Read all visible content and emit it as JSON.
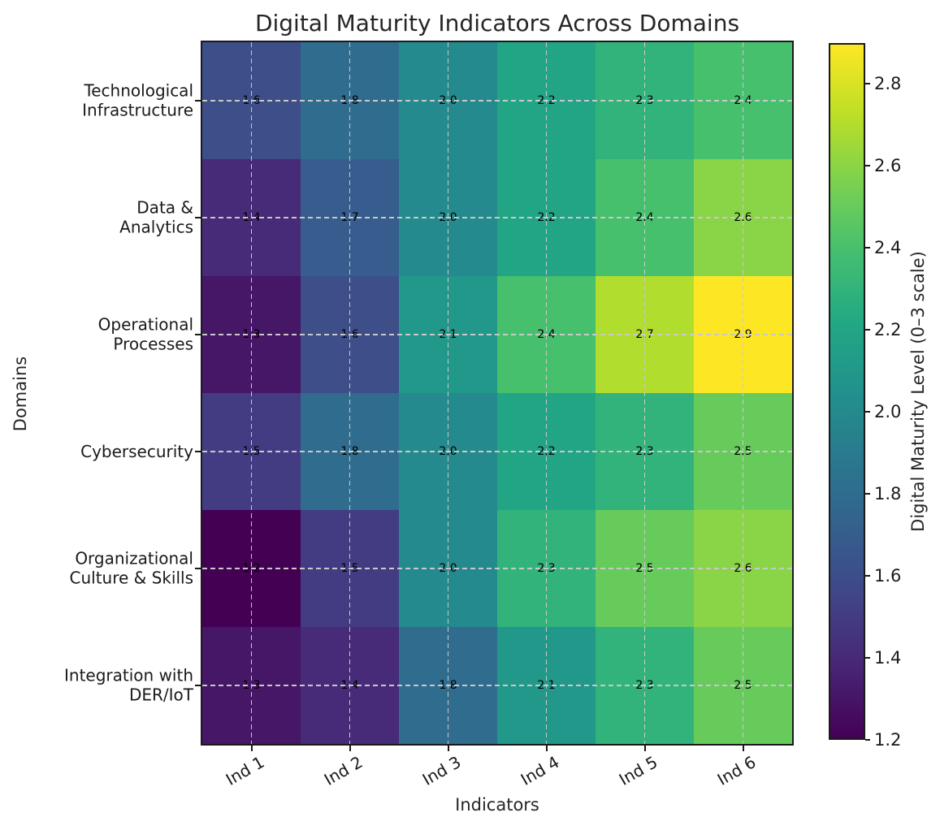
{
  "chart_data": {
    "type": "heatmap",
    "title": "Digital Maturity Indicators Across Domains",
    "xlabel": "Indicators",
    "ylabel": "Domains",
    "x_labels": [
      "Ind 1",
      "Ind 2",
      "Ind 3",
      "Ind 4",
      "Ind 5",
      "Ind 6"
    ],
    "y_labels": [
      "Technological\nInfrastructure",
      "Data &\nAnalytics",
      "Operational\nProcesses",
      "Cybersecurity",
      "Organizational\nCulture & Skills",
      "Integration with\nDER/IoT"
    ],
    "values": [
      [
        1.6,
        1.8,
        2.0,
        2.2,
        2.3,
        2.4
      ],
      [
        1.4,
        1.7,
        2.0,
        2.2,
        2.4,
        2.6
      ],
      [
        1.3,
        1.6,
        2.1,
        2.4,
        2.7,
        2.9
      ],
      [
        1.5,
        1.8,
        2.0,
        2.2,
        2.3,
        2.5
      ],
      [
        1.2,
        1.5,
        2.0,
        2.3,
        2.5,
        2.6
      ],
      [
        1.3,
        1.4,
        1.8,
        2.1,
        2.3,
        2.5
      ]
    ],
    "annotation_decimals": 1,
    "colormap": "viridis",
    "vmin": 1.2,
    "vmax": 2.9,
    "grid": "dashed gridlines at cell centers",
    "legend_position": "colorbar right",
    "colorbar": {
      "label": "Digital Maturity Level (0–3 scale)",
      "ticks": [
        "1.2",
        "1.4",
        "1.6",
        "1.8",
        "2.0",
        "2.2",
        "2.4",
        "2.6",
        "2.8"
      ]
    },
    "colors": {
      "annotation_text": "#000000",
      "axis_text": "#1a1a1a",
      "title_text": "#262626",
      "gridline": "#c9c9c9",
      "spine": "#1a1a1a",
      "background": "#ffffff"
    }
  }
}
